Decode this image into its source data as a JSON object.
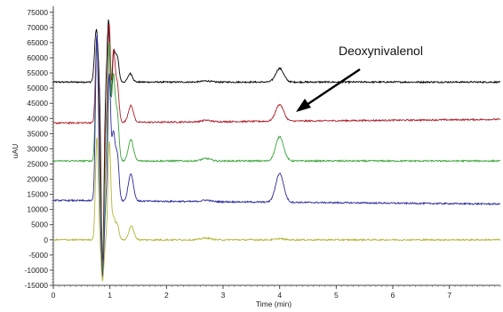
{
  "chart_data": {
    "type": "line",
    "xlabel": "Time (min)",
    "ylabel": "uAU",
    "xlim": [
      0,
      7.9
    ],
    "ylim": [
      -15000,
      77000
    ],
    "x_ticks": [
      "0",
      "1",
      "2",
      "3",
      "4",
      "5",
      "6",
      "7"
    ],
    "y_ticks": [
      "75000",
      "70000",
      "65000",
      "60000",
      "55000",
      "50000",
      "45000",
      "40000",
      "35000",
      "30000",
      "25000",
      "20000",
      "15000",
      "10000",
      "5000",
      "0",
      "-5000",
      "-10000",
      "-15000"
    ],
    "grid": false,
    "annotation": {
      "text": "Deoxynivalenol",
      "points_to_x": 4.15,
      "points_to_y": 44000
    },
    "series": [
      {
        "color": "#000000",
        "baseline": 52000,
        "drift": 0,
        "peaks": [
          [
            0.76,
            17500,
            0.03
          ],
          [
            0.98,
            22000,
            0.025
          ],
          [
            1.06,
            11000,
            0.03
          ],
          [
            1.13,
            8000,
            0.03
          ],
          [
            1.36,
            2800,
            0.04
          ],
          [
            2.7,
            400,
            0.08
          ],
          [
            4.0,
            4500,
            0.07
          ]
        ]
      },
      {
        "color": "#b01e2a",
        "baseline": 38500,
        "drift": 1200,
        "peaks": [
          [
            0.77,
            28000,
            0.025
          ],
          [
            0.99,
            35000,
            0.025
          ],
          [
            1.06,
            24000,
            0.03
          ],
          [
            1.13,
            12000,
            0.03
          ],
          [
            1.37,
            5500,
            0.045
          ],
          [
            2.7,
            500,
            0.08
          ],
          [
            4.0,
            5500,
            0.07
          ]
        ]
      },
      {
        "color": "#3aa63a",
        "baseline": 26000,
        "drift": 0,
        "peaks": [
          [
            0.77,
            41000,
            0.025
          ],
          [
            0.99,
            40000,
            0.025
          ],
          [
            1.06,
            28000,
            0.03
          ],
          [
            1.13,
            15000,
            0.03
          ],
          [
            1.37,
            7000,
            0.045
          ],
          [
            2.7,
            800,
            0.08
          ],
          [
            4.0,
            8000,
            0.07
          ]
        ]
      },
      {
        "color": "#2b2b9e",
        "baseline": 13000,
        "drift": -1200,
        "peaks": [
          [
            0.77,
            55000,
            0.025
          ],
          [
            0.99,
            42000,
            0.025
          ],
          [
            1.06,
            22000,
            0.03
          ],
          [
            1.13,
            15000,
            0.03
          ],
          [
            1.37,
            9000,
            0.045
          ],
          [
            2.7,
            500,
            0.08
          ],
          [
            4.0,
            9500,
            0.07
          ]
        ]
      },
      {
        "color": "#b7b53a",
        "baseline": 0,
        "drift": 0,
        "peaks": [
          [
            0.77,
            34000,
            0.025
          ],
          [
            0.99,
            32000,
            0.025
          ],
          [
            1.06,
            7000,
            0.03
          ],
          [
            1.13,
            5000,
            0.03
          ],
          [
            1.38,
            4500,
            0.045
          ],
          [
            2.7,
            600,
            0.08
          ],
          [
            4.0,
            400,
            0.07
          ]
        ]
      }
    ]
  }
}
